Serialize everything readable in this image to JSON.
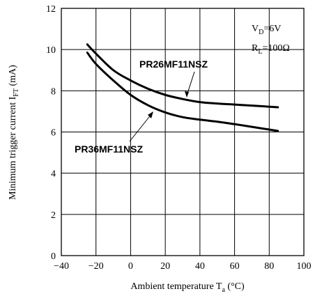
{
  "chart_data": {
    "type": "line",
    "xlabel": {
      "text": "Ambient temperature T",
      "sub": "a",
      "unit": " (°C)"
    },
    "ylabel": {
      "text": "Minimum trigger current I",
      "sub": "FT",
      "unit": " (mA)"
    },
    "xlim": [
      -40,
      100
    ],
    "ylim": [
      0,
      12
    ],
    "xticks": [
      "−40",
      "−20",
      "0",
      "20",
      "40",
      "60",
      "80",
      "100"
    ],
    "yticks": [
      "0",
      "2",
      "4",
      "6",
      "8",
      "10",
      "12"
    ],
    "grid": true,
    "conditions": [
      {
        "main": "V",
        "sub": "D",
        "rest": "=6V"
      },
      {
        "main": "R",
        "sub": "L",
        "rest": "=100Ω"
      }
    ],
    "series": [
      {
        "name": "PR26MF11NSZ",
        "x": [
          -25,
          -20,
          -10,
          0,
          10,
          20,
          30,
          40,
          50,
          60,
          70,
          85
        ],
        "y": [
          10.25,
          9.8,
          9.0,
          8.5,
          8.1,
          7.8,
          7.6,
          7.45,
          7.38,
          7.33,
          7.28,
          7.2
        ]
      },
      {
        "name": "PR36MF11NSZ",
        "x": [
          -25,
          -20,
          -10,
          0,
          10,
          20,
          30,
          40,
          50,
          60,
          70,
          85
        ],
        "y": [
          9.85,
          9.3,
          8.5,
          7.8,
          7.3,
          6.95,
          6.72,
          6.6,
          6.5,
          6.38,
          6.25,
          6.05
        ]
      }
    ]
  }
}
